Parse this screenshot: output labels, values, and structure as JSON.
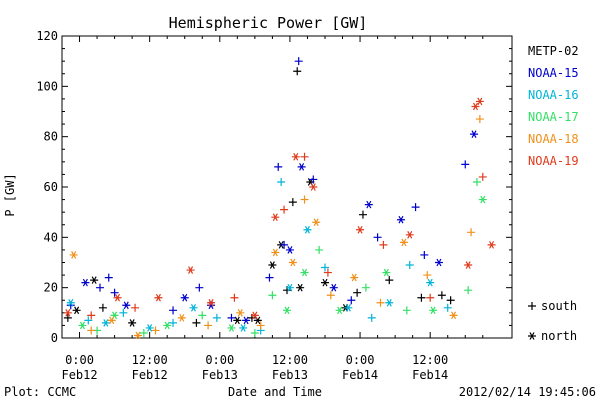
{
  "chart_data": {
    "type": "scatter",
    "title": "Hemispheric Power [GW]",
    "ylabel": "P [GW]",
    "xlabel": "Date and Time",
    "footer_left": "Plot: CCMC",
    "footer_right": "2012/02/14 19:45:06",
    "ylim": [
      0,
      120
    ],
    "yticks": [
      0,
      20,
      40,
      60,
      80,
      100,
      120
    ],
    "xlim": [
      "2012-02-11T21:00",
      "2012-02-15T02:00"
    ],
    "xticks": [
      {
        "at": "2012-02-12T00:00",
        "time": "0:00",
        "date": "Feb12"
      },
      {
        "at": "2012-02-12T12:00",
        "time": "12:00",
        "date": "Feb12"
      },
      {
        "at": "2012-02-13T00:00",
        "time": "0:00",
        "date": "Feb13"
      },
      {
        "at": "2012-02-13T12:00",
        "time": "12:00",
        "date": "Feb13"
      },
      {
        "at": "2012-02-14T00:00",
        "time": "0:00",
        "date": "Feb14"
      },
      {
        "at": "2012-02-14T12:00",
        "time": "12:00",
        "date": "Feb14"
      }
    ],
    "marker_legend": [
      {
        "symbol": "+",
        "label": "south"
      },
      {
        "symbol": "*",
        "label": "north"
      }
    ],
    "series": [
      {
        "name": "METP-02",
        "color": "#000000",
        "points": [
          {
            "t": "2012-02-11T22:00",
            "v": 8,
            "m": "+"
          },
          {
            "t": "2012-02-11T23:30",
            "v": 11,
            "m": "*"
          },
          {
            "t": "2012-02-12T02:30",
            "v": 23,
            "m": "*"
          },
          {
            "t": "2012-02-12T04:00",
            "v": 12,
            "m": "+"
          },
          {
            "t": "2012-02-12T09:00",
            "v": 6,
            "m": "*"
          },
          {
            "t": "2012-02-12T20:00",
            "v": 6,
            "m": "+"
          },
          {
            "t": "2012-02-13T03:00",
            "v": 7,
            "m": "*"
          },
          {
            "t": "2012-02-13T05:30",
            "v": 8,
            "m": "+"
          },
          {
            "t": "2012-02-13T06:30",
            "v": 7,
            "m": "*"
          },
          {
            "t": "2012-02-13T09:00",
            "v": 29,
            "m": "*"
          },
          {
            "t": "2012-02-13T10:30",
            "v": 37,
            "m": "*"
          },
          {
            "t": "2012-02-13T11:30",
            "v": 19,
            "m": "+"
          },
          {
            "t": "2012-02-13T12:30",
            "v": 54,
            "m": "+"
          },
          {
            "t": "2012-02-13T13:15",
            "v": 106,
            "m": "+"
          },
          {
            "t": "2012-02-13T13:45",
            "v": 20,
            "m": "*"
          },
          {
            "t": "2012-02-13T15:30",
            "v": 62,
            "m": "*"
          },
          {
            "t": "2012-02-13T18:00",
            "v": 22,
            "m": "*"
          },
          {
            "t": "2012-02-13T21:30",
            "v": 12,
            "m": "*"
          },
          {
            "t": "2012-02-13T23:30",
            "v": 18,
            "m": "+"
          },
          {
            "t": "2012-02-14T00:30",
            "v": 49,
            "m": "+"
          },
          {
            "t": "2012-02-14T05:00",
            "v": 23,
            "m": "+"
          },
          {
            "t": "2012-02-14T10:30",
            "v": 16,
            "m": "+"
          },
          {
            "t": "2012-02-14T14:00",
            "v": 17,
            "m": "+"
          },
          {
            "t": "2012-02-14T15:30",
            "v": 15,
            "m": "+"
          }
        ]
      },
      {
        "name": "NOAA-15",
        "color": "#0000cc",
        "points": [
          {
            "t": "2012-02-11T22:30",
            "v": 13,
            "m": "+"
          },
          {
            "t": "2012-02-12T01:00",
            "v": 22,
            "m": "*"
          },
          {
            "t": "2012-02-12T03:30",
            "v": 20,
            "m": "+"
          },
          {
            "t": "2012-02-12T05:00",
            "v": 24,
            "m": "+"
          },
          {
            "t": "2012-02-12T06:00",
            "v": 18,
            "m": "+"
          },
          {
            "t": "2012-02-12T08:00",
            "v": 13,
            "m": "*"
          },
          {
            "t": "2012-02-12T16:00",
            "v": 11,
            "m": "+"
          },
          {
            "t": "2012-02-12T18:00",
            "v": 16,
            "m": "*"
          },
          {
            "t": "2012-02-12T20:30",
            "v": 20,
            "m": "+"
          },
          {
            "t": "2012-02-12T22:30",
            "v": 13,
            "m": "*"
          },
          {
            "t": "2012-02-13T02:00",
            "v": 8,
            "m": "+"
          },
          {
            "t": "2012-02-13T04:30",
            "v": 7,
            "m": "*"
          },
          {
            "t": "2012-02-13T08:30",
            "v": 24,
            "m": "+"
          },
          {
            "t": "2012-02-13T10:00",
            "v": 68,
            "m": "+"
          },
          {
            "t": "2012-02-13T11:00",
            "v": 37,
            "m": "+"
          },
          {
            "t": "2012-02-13T12:00",
            "v": 35,
            "m": "*"
          },
          {
            "t": "2012-02-13T13:30",
            "v": 110,
            "m": "+"
          },
          {
            "t": "2012-02-13T14:00",
            "v": 68,
            "m": "*"
          },
          {
            "t": "2012-02-13T16:00",
            "v": 63,
            "m": "+"
          },
          {
            "t": "2012-02-13T19:30",
            "v": 20,
            "m": "*"
          },
          {
            "t": "2012-02-13T22:30",
            "v": 15,
            "m": "+"
          },
          {
            "t": "2012-02-14T01:30",
            "v": 53,
            "m": "*"
          },
          {
            "t": "2012-02-14T03:00",
            "v": 40,
            "m": "+"
          },
          {
            "t": "2012-02-14T07:00",
            "v": 47,
            "m": "*"
          },
          {
            "t": "2012-02-14T09:30",
            "v": 52,
            "m": "+"
          },
          {
            "t": "2012-02-14T11:00",
            "v": 33,
            "m": "+"
          },
          {
            "t": "2012-02-14T13:30",
            "v": 30,
            "m": "*"
          },
          {
            "t": "2012-02-14T18:00",
            "v": 69,
            "m": "+"
          },
          {
            "t": "2012-02-14T19:30",
            "v": 81,
            "m": "*"
          }
        ]
      },
      {
        "name": "NOAA-16",
        "color": "#00b4d8",
        "points": [
          {
            "t": "2012-02-11T22:30",
            "v": 14,
            "m": "*"
          },
          {
            "t": "2012-02-12T01:30",
            "v": 7,
            "m": "+"
          },
          {
            "t": "2012-02-12T04:30",
            "v": 6,
            "m": "*"
          },
          {
            "t": "2012-02-12T07:30",
            "v": 10,
            "m": "+"
          },
          {
            "t": "2012-02-12T12:00",
            "v": 4,
            "m": "*"
          },
          {
            "t": "2012-02-12T16:00",
            "v": 6,
            "m": "+"
          },
          {
            "t": "2012-02-12T19:30",
            "v": 12,
            "m": "*"
          },
          {
            "t": "2012-02-12T23:30",
            "v": 8,
            "m": "+"
          },
          {
            "t": "2012-02-13T04:00",
            "v": 4,
            "m": "*"
          },
          {
            "t": "2012-02-13T07:00",
            "v": 3,
            "m": "+"
          },
          {
            "t": "2012-02-13T10:30",
            "v": 62,
            "m": "+"
          },
          {
            "t": "2012-02-13T12:00",
            "v": 20,
            "m": "*"
          },
          {
            "t": "2012-02-13T15:00",
            "v": 43,
            "m": "*"
          },
          {
            "t": "2012-02-13T18:00",
            "v": 28,
            "m": "+"
          },
          {
            "t": "2012-02-13T22:00",
            "v": 12,
            "m": "*"
          },
          {
            "t": "2012-02-14T02:00",
            "v": 8,
            "m": "+"
          },
          {
            "t": "2012-02-14T05:00",
            "v": 14,
            "m": "*"
          },
          {
            "t": "2012-02-14T08:30",
            "v": 29,
            "m": "+"
          },
          {
            "t": "2012-02-14T12:00",
            "v": 22,
            "m": "*"
          },
          {
            "t": "2012-02-14T15:00",
            "v": 12,
            "m": "+"
          }
        ]
      },
      {
        "name": "NOAA-17",
        "color": "#33e066",
        "points": [
          {
            "t": "2012-02-12T00:30",
            "v": 5,
            "m": "*"
          },
          {
            "t": "2012-02-12T03:00",
            "v": 3,
            "m": "+"
          },
          {
            "t": "2012-02-12T06:00",
            "v": 9,
            "m": "*"
          },
          {
            "t": "2012-02-12T11:00",
            "v": 2,
            "m": "+"
          },
          {
            "t": "2012-02-12T15:00",
            "v": 5,
            "m": "*"
          },
          {
            "t": "2012-02-12T21:00",
            "v": 9,
            "m": "+"
          },
          {
            "t": "2012-02-13T02:00",
            "v": 4,
            "m": "*"
          },
          {
            "t": "2012-02-13T06:00",
            "v": 2,
            "m": "+"
          },
          {
            "t": "2012-02-13T09:00",
            "v": 17,
            "m": "+"
          },
          {
            "t": "2012-02-13T11:30",
            "v": 11,
            "m": "*"
          },
          {
            "t": "2012-02-13T14:30",
            "v": 26,
            "m": "*"
          },
          {
            "t": "2012-02-13T17:00",
            "v": 35,
            "m": "+"
          },
          {
            "t": "2012-02-13T20:30",
            "v": 11,
            "m": "*"
          },
          {
            "t": "2012-02-14T01:00",
            "v": 20,
            "m": "+"
          },
          {
            "t": "2012-02-14T04:30",
            "v": 26,
            "m": "*"
          },
          {
            "t": "2012-02-14T08:00",
            "v": 11,
            "m": "+"
          },
          {
            "t": "2012-02-14T12:30",
            "v": 11,
            "m": "*"
          },
          {
            "t": "2012-02-14T18:30",
            "v": 19,
            "m": "+"
          },
          {
            "t": "2012-02-14T20:00",
            "v": 62,
            "m": "+"
          },
          {
            "t": "2012-02-14T21:00",
            "v": 55,
            "m": "*"
          }
        ]
      },
      {
        "name": "NOAA-18",
        "color": "#f0901a",
        "points": [
          {
            "t": "2012-02-11T23:00",
            "v": 33,
            "m": "*"
          },
          {
            "t": "2012-02-12T02:00",
            "v": 3,
            "m": "+"
          },
          {
            "t": "2012-02-12T05:30",
            "v": 7,
            "m": "*"
          },
          {
            "t": "2012-02-12T10:00",
            "v": 1,
            "m": "*"
          },
          {
            "t": "2012-02-12T13:00",
            "v": 3,
            "m": "+"
          },
          {
            "t": "2012-02-12T17:30",
            "v": 8,
            "m": "*"
          },
          {
            "t": "2012-02-12T22:00",
            "v": 5,
            "m": "+"
          },
          {
            "t": "2012-02-13T03:30",
            "v": 10,
            "m": "*"
          },
          {
            "t": "2012-02-13T07:00",
            "v": 5,
            "m": "+"
          },
          {
            "t": "2012-02-13T09:30",
            "v": 34,
            "m": "*"
          },
          {
            "t": "2012-02-13T12:30",
            "v": 30,
            "m": "*"
          },
          {
            "t": "2012-02-13T14:30",
            "v": 55,
            "m": "+"
          },
          {
            "t": "2012-02-13T16:30",
            "v": 46,
            "m": "*"
          },
          {
            "t": "2012-02-13T19:00",
            "v": 17,
            "m": "+"
          },
          {
            "t": "2012-02-13T23:00",
            "v": 24,
            "m": "*"
          },
          {
            "t": "2012-02-14T03:30",
            "v": 14,
            "m": "+"
          },
          {
            "t": "2012-02-14T07:30",
            "v": 38,
            "m": "*"
          },
          {
            "t": "2012-02-14T11:30",
            "v": 25,
            "m": "+"
          },
          {
            "t": "2012-02-14T16:00",
            "v": 9,
            "m": "*"
          },
          {
            "t": "2012-02-14T19:00",
            "v": 42,
            "m": "+"
          },
          {
            "t": "2012-02-14T20:30",
            "v": 87,
            "m": "+"
          }
        ]
      },
      {
        "name": "NOAA-19",
        "color": "#e03a1c",
        "points": [
          {
            "t": "2012-02-11T22:00",
            "v": 10,
            "m": "*"
          },
          {
            "t": "2012-02-12T02:00",
            "v": 9,
            "m": "+"
          },
          {
            "t": "2012-02-12T06:30",
            "v": 16,
            "m": "*"
          },
          {
            "t": "2012-02-12T09:30",
            "v": 12,
            "m": "+"
          },
          {
            "t": "2012-02-12T13:30",
            "v": 16,
            "m": "*"
          },
          {
            "t": "2012-02-12T19:00",
            "v": 27,
            "m": "*"
          },
          {
            "t": "2012-02-12T22:30",
            "v": 14,
            "m": "*"
          },
          {
            "t": "2012-02-13T02:30",
            "v": 16,
            "m": "+"
          },
          {
            "t": "2012-02-13T06:00",
            "v": 9,
            "m": "*"
          },
          {
            "t": "2012-02-13T09:30",
            "v": 48,
            "m": "*"
          },
          {
            "t": "2012-02-13T11:00",
            "v": 51,
            "m": "+"
          },
          {
            "t": "2012-02-13T13:00",
            "v": 72,
            "m": "*"
          },
          {
            "t": "2012-02-13T14:30",
            "v": 72,
            "m": "+"
          },
          {
            "t": "2012-02-13T16:00",
            "v": 60,
            "m": "*"
          },
          {
            "t": "2012-02-13T18:30",
            "v": 26,
            "m": "+"
          },
          {
            "t": "2012-02-14T00:00",
            "v": 43,
            "m": "*"
          },
          {
            "t": "2012-02-14T04:00",
            "v": 37,
            "m": "+"
          },
          {
            "t": "2012-02-14T08:30",
            "v": 41,
            "m": "*"
          },
          {
            "t": "2012-02-14T12:00",
            "v": 16,
            "m": "+"
          },
          {
            "t": "2012-02-14T18:30",
            "v": 29,
            "m": "*"
          },
          {
            "t": "2012-02-14T19:45",
            "v": 92,
            "m": "*"
          },
          {
            "t": "2012-02-14T20:30",
            "v": 94,
            "m": "*"
          },
          {
            "t": "2012-02-14T21:00",
            "v": 64,
            "m": "+"
          },
          {
            "t": "2012-02-14T22:30",
            "v": 37,
            "m": "*"
          }
        ]
      }
    ]
  }
}
